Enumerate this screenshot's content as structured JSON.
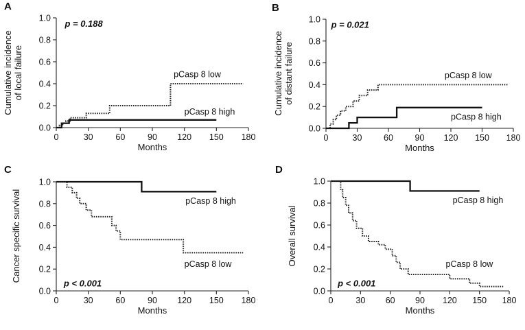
{
  "chart_data": [
    {
      "panel": "A",
      "type": "line",
      "annotation": "p = 0.188",
      "ylabel": "Cumulative  incidence\nof local failure",
      "xlabel": "Months",
      "xlim": [
        0,
        180
      ],
      "ylim": [
        0,
        1.0
      ],
      "xticks": [
        "0",
        "30",
        "60",
        "90",
        "120",
        "150",
        "180"
      ],
      "yticks": [
        "0.0",
        "0.2",
        "0.4",
        "0.6",
        "0.8",
        "1.0"
      ],
      "series": [
        {
          "name": "pCasp 8 low",
          "style": "dotted",
          "label_pos": "above",
          "steps": [
            [
              0,
              0
            ],
            [
              3,
              0.02
            ],
            [
              6,
              0.04
            ],
            [
              9,
              0.06
            ],
            [
              13,
              0.09
            ],
            [
              28,
              0.13
            ],
            [
              50,
              0.2
            ],
            [
              107,
              0.4
            ],
            [
              175,
              0.4
            ]
          ]
        },
        {
          "name": "pCasp 8 high",
          "style": "solid",
          "label_pos": "above",
          "steps": [
            [
              0,
              0
            ],
            [
              5,
              0.04
            ],
            [
              12,
              0.07
            ],
            [
              150,
              0.07
            ]
          ]
        }
      ]
    },
    {
      "panel": "B",
      "type": "line",
      "annotation": "p = 0.021",
      "ylabel": "Cumulative  incidence\nof distant failure",
      "xlabel": "Months",
      "xlim": [
        0,
        180
      ],
      "ylim": [
        0,
        1.0
      ],
      "xticks": [
        "0",
        "30",
        "60",
        "90",
        "120",
        "150",
        "180"
      ],
      "yticks": [
        "0.0",
        "0.2",
        "0.4",
        "0.6",
        "0.8",
        "1.0"
      ],
      "series": [
        {
          "name": "pCasp 8 low",
          "style": "dotted",
          "label_pos": "above",
          "steps": [
            [
              0,
              0
            ],
            [
              4,
              0.04
            ],
            [
              7,
              0.08
            ],
            [
              10,
              0.12
            ],
            [
              14,
              0.16
            ],
            [
              19,
              0.2
            ],
            [
              26,
              0.25
            ],
            [
              32,
              0.3
            ],
            [
              40,
              0.35
            ],
            [
              50,
              0.4
            ],
            [
              175,
              0.4
            ]
          ]
        },
        {
          "name": "pCasp 8 high",
          "style": "solid",
          "label_pos": "below",
          "steps": [
            [
              0,
              0
            ],
            [
              22,
              0.05
            ],
            [
              30,
              0.1
            ],
            [
              68,
              0.19
            ],
            [
              150,
              0.19
            ]
          ]
        }
      ]
    },
    {
      "panel": "C",
      "type": "line",
      "annotation": "p < 0.001",
      "ylabel": "Cancer specific survival",
      "xlabel": "Months",
      "xlim": [
        0,
        180
      ],
      "ylim": [
        0,
        1.0
      ],
      "xticks": [
        "0",
        "30",
        "60",
        "90",
        "120",
        "150",
        "180"
      ],
      "yticks": [
        "0.0",
        "0.2",
        "0.4",
        "0.6",
        "0.8",
        "1.0"
      ],
      "series": [
        {
          "name": "pCasp 8 high",
          "style": "solid",
          "label_pos": "below",
          "steps": [
            [
              0,
              1.0
            ],
            [
              80,
              0.91
            ],
            [
              150,
              0.91
            ]
          ]
        },
        {
          "name": "pCasp 8 low",
          "style": "dotted",
          "label_pos": "below",
          "steps": [
            [
              0,
              1.0
            ],
            [
              10,
              0.95
            ],
            [
              15,
              0.9
            ],
            [
              19,
              0.85
            ],
            [
              22,
              0.8
            ],
            [
              28,
              0.74
            ],
            [
              33,
              0.68
            ],
            [
              52,
              0.6
            ],
            [
              56,
              0.55
            ],
            [
              60,
              0.47
            ],
            [
              119,
              0.35
            ],
            [
              175,
              0.35
            ]
          ]
        }
      ]
    },
    {
      "panel": "D",
      "type": "line",
      "annotation": "p < 0.001",
      "ylabel": "Overall survival",
      "xlabel": "Months",
      "xlim": [
        0,
        180
      ],
      "ylim": [
        0,
        1.0
      ],
      "xticks": [
        "0",
        "30",
        "60",
        "90",
        "120",
        "150",
        "180"
      ],
      "yticks": [
        "0.0",
        "0.2",
        "0.4",
        "0.6",
        "0.8",
        "1.0"
      ],
      "series": [
        {
          "name": "pCasp 8 high",
          "style": "solid",
          "label_pos": "below",
          "steps": [
            [
              0,
              1.0
            ],
            [
              80,
              0.91
            ],
            [
              150,
              0.91
            ]
          ]
        },
        {
          "name": "pCasp 8 low",
          "style": "dotted",
          "label_pos": "above",
          "steps": [
            [
              0,
              1.0
            ],
            [
              10,
              0.92
            ],
            [
              12,
              0.85
            ],
            [
              15,
              0.78
            ],
            [
              18,
              0.71
            ],
            [
              22,
              0.64
            ],
            [
              26,
              0.57
            ],
            [
              32,
              0.5
            ],
            [
              38,
              0.45
            ],
            [
              48,
              0.42
            ],
            [
              55,
              0.38
            ],
            [
              62,
              0.32
            ],
            [
              66,
              0.26
            ],
            [
              70,
              0.2
            ],
            [
              78,
              0.15
            ],
            [
              120,
              0.11
            ],
            [
              140,
              0.07
            ],
            [
              150,
              0.04
            ],
            [
              175,
              0.04
            ]
          ]
        }
      ]
    }
  ]
}
